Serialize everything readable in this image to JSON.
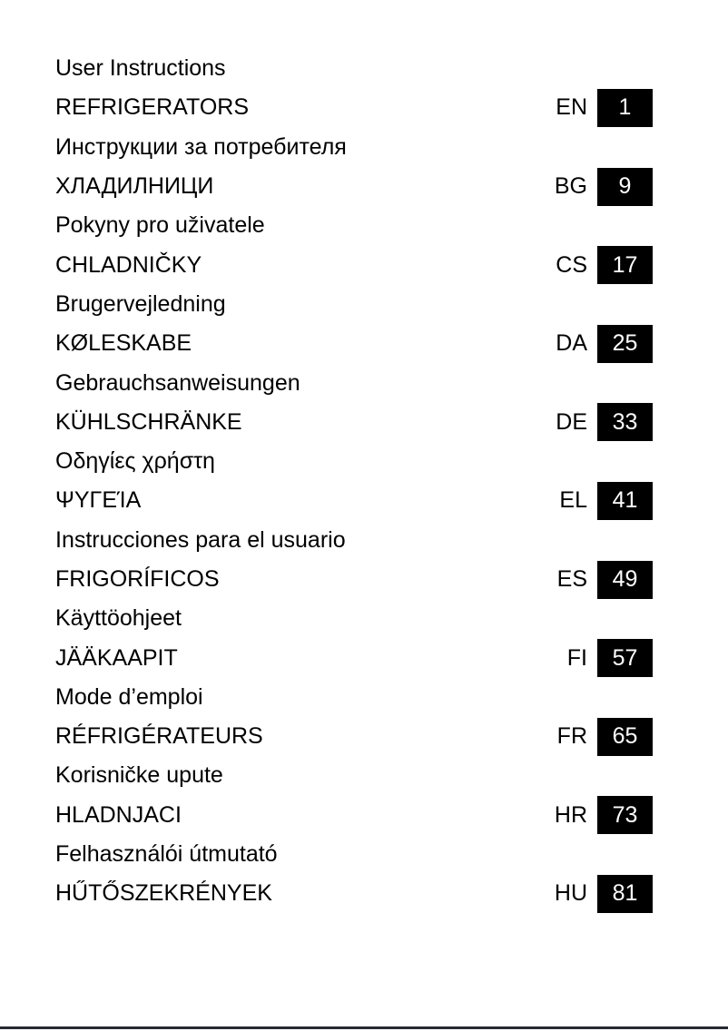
{
  "page": {
    "colors": {
      "page_bg": "#ffffff",
      "text": "#000000",
      "page_box_bg": "#000000",
      "page_box_text": "#ffffff",
      "bottom_rule": "#262a32"
    },
    "entries": [
      {
        "subtitle": "User Instructions",
        "title": "REFRIGERATORS",
        "lang": "EN",
        "page": "1"
      },
      {
        "subtitle": "Инструкции за потребителя",
        "title": "ХЛАДИЛНИЦИ",
        "lang": "BG",
        "page": "9"
      },
      {
        "subtitle": "Pokyny pro uživatele",
        "title": "CHLADNIČKY",
        "lang": "CS",
        "page": "17"
      },
      {
        "subtitle": "Brugervejledning",
        "title": "KØLESKABE",
        "lang": "DA",
        "page": "25"
      },
      {
        "subtitle": "Gebrauchsanweisungen",
        "title": "KÜHLSCHRÄNKE",
        "lang": "DE",
        "page": "33"
      },
      {
        "subtitle": "Οδηγίες χρήστη",
        "title": "ΨΥΓΕΊΑ",
        "lang": "EL",
        "page": "41"
      },
      {
        "subtitle": "Instrucciones para el usuario",
        "title": "FRIGORÍFICOS",
        "lang": "ES",
        "page": "49"
      },
      {
        "subtitle": "Käyttöohjeet",
        "title": "JÄÄKAAPIT",
        "lang": "FI",
        "page": "57"
      },
      {
        "subtitle": "Mode d’emploi",
        "title": "RÉFRIGÉRATEURS",
        "lang": "FR",
        "page": "65"
      },
      {
        "subtitle": "Korisničke upute",
        "title": "HLADNJACI",
        "lang": "HR",
        "page": "73"
      },
      {
        "subtitle": "Felhasználói útmutató",
        "title": "HŰTŐSZEKRÉNYEK",
        "lang": "HU",
        "page": "81"
      }
    ]
  }
}
